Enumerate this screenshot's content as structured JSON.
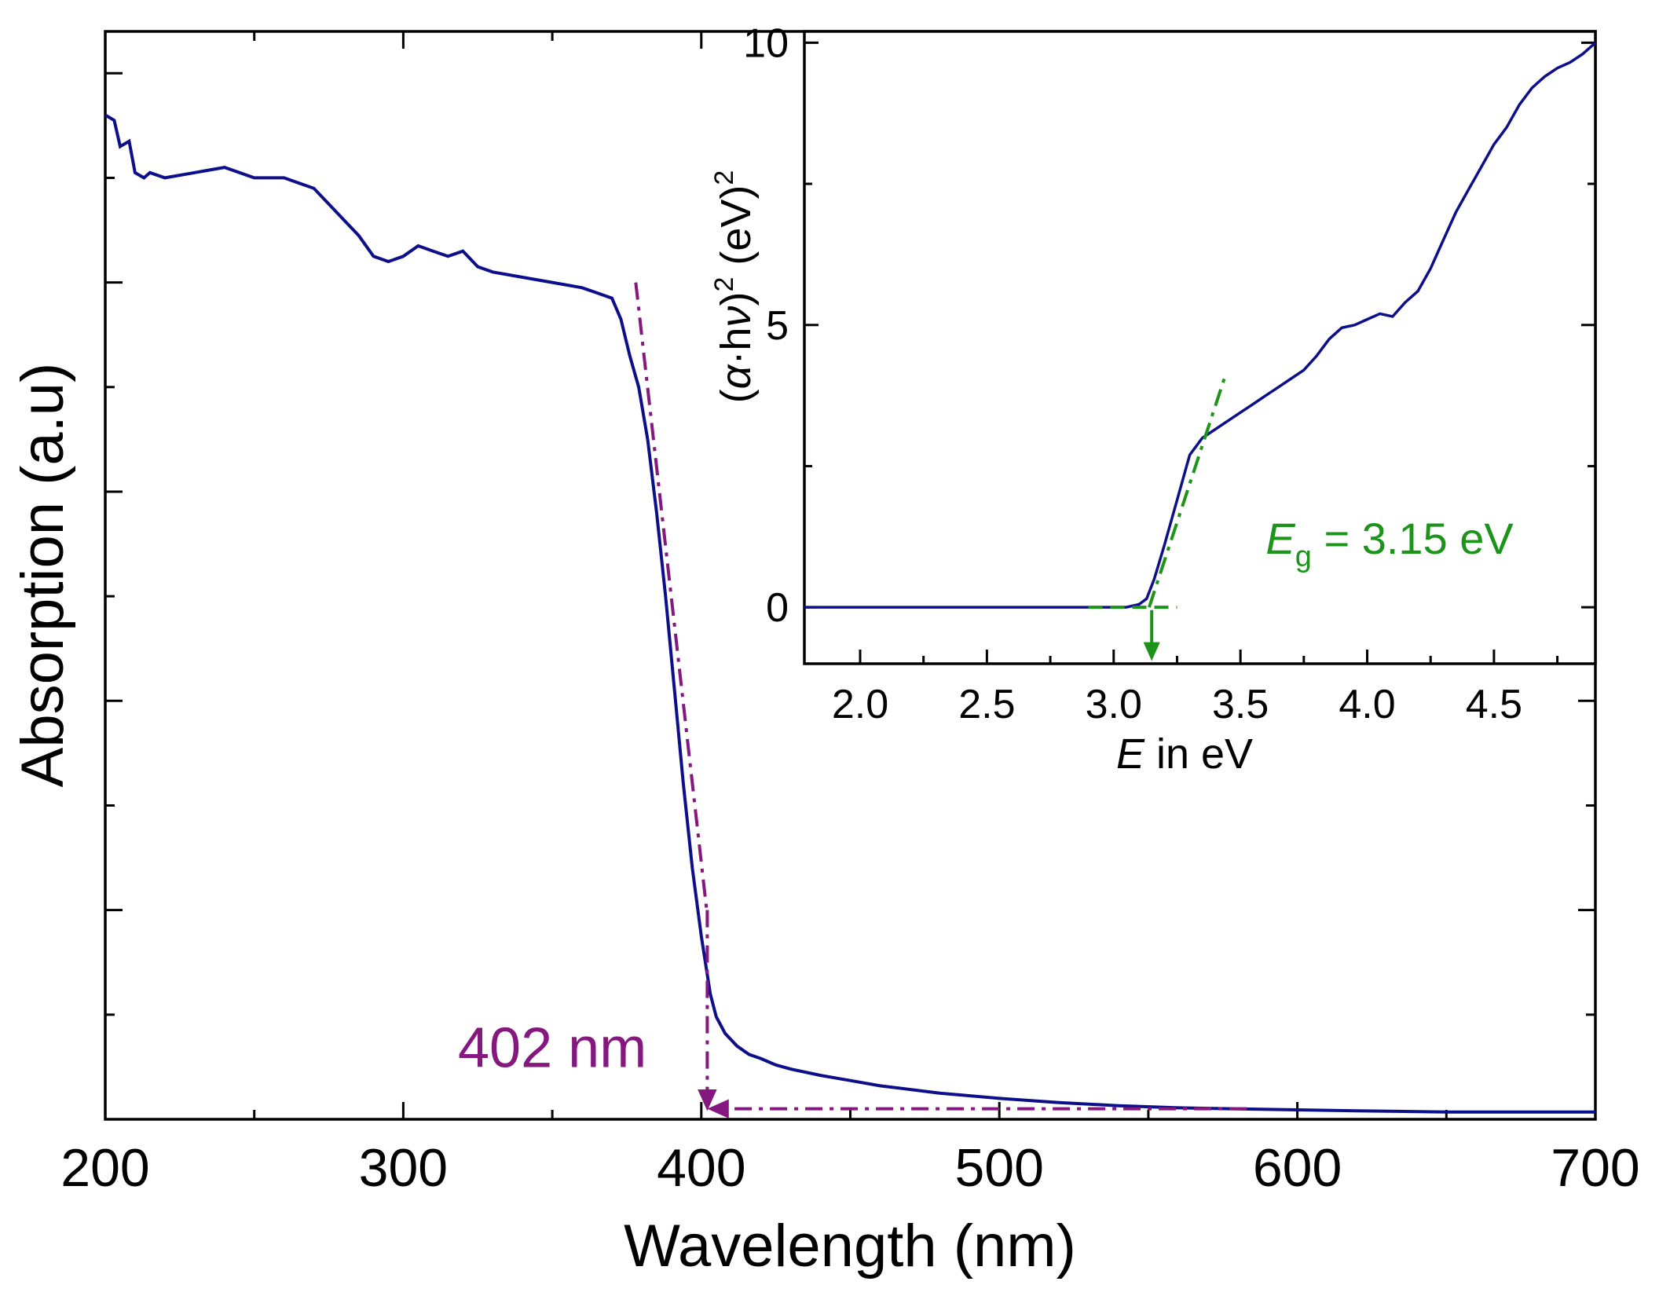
{
  "chart_data": [
    {
      "type": "line",
      "panel": "main",
      "xlabel": "Wavelength (nm)",
      "ylabel": "Absorption (a.u)",
      "xlim": [
        200,
        700
      ],
      "ylim": [
        0,
        10.4
      ],
      "y_tick_labels_shown": false,
      "x_ticks": [
        200,
        300,
        400,
        500,
        600,
        700
      ],
      "x_tick_labels": [
        "200",
        "300",
        "400",
        "500",
        "600",
        "700"
      ],
      "series": [
        {
          "color": "#0d0f8a",
          "x": [
            200,
            203,
            205,
            208,
            210,
            213,
            215,
            220,
            230,
            240,
            250,
            260,
            270,
            280,
            285,
            290,
            295,
            300,
            305,
            310,
            315,
            320,
            325,
            330,
            340,
            350,
            360,
            365,
            370,
            373,
            376,
            379,
            382,
            385,
            388,
            391,
            394,
            397,
            400,
            403,
            405,
            408,
            412,
            416,
            420,
            425,
            430,
            440,
            450,
            460,
            480,
            500,
            520,
            540,
            560,
            580,
            600,
            620,
            650,
            680,
            700
          ],
          "y": [
            9.6,
            9.55,
            9.3,
            9.35,
            9.05,
            9.0,
            9.05,
            9.0,
            9.05,
            9.1,
            9.0,
            9.0,
            8.9,
            8.6,
            8.45,
            8.25,
            8.2,
            8.25,
            8.35,
            8.3,
            8.25,
            8.3,
            8.15,
            8.1,
            8.05,
            8.0,
            7.95,
            7.9,
            7.85,
            7.65,
            7.3,
            7.0,
            6.5,
            5.8,
            5.0,
            4.1,
            3.2,
            2.4,
            1.75,
            1.2,
            0.98,
            0.82,
            0.7,
            0.62,
            0.58,
            0.52,
            0.48,
            0.42,
            0.37,
            0.32,
            0.25,
            0.2,
            0.16,
            0.13,
            0.11,
            0.1,
            0.09,
            0.08,
            0.07,
            0.07,
            0.07
          ]
        }
      ],
      "annotations": [
        {
          "type": "tangent-line",
          "color": "#84187f",
          "style": "dash-dot",
          "points": [
            [
              378,
              8.0
            ],
            [
              402,
              1.95
            ]
          ]
        },
        {
          "type": "arrow",
          "color": "#84187f",
          "style": "dash-dot",
          "from": [
            402,
            2.0
          ],
          "to": [
            402,
            0.08
          ]
        },
        {
          "type": "arrow",
          "color": "#84187f",
          "style": "dash-dot",
          "from": [
            583,
            0.1
          ],
          "to": [
            402,
            0.1
          ]
        },
        {
          "type": "label",
          "text": "402 nm",
          "color": "#84187f",
          "x": 350,
          "y": 0.5
        }
      ]
    },
    {
      "type": "line",
      "panel": "inset",
      "xlabel_italic": "E",
      "xlabel_rest": " in eV",
      "ylabel": "(α·hν)² (eV)²",
      "ylabel_parts": {
        "open": "(",
        "alpha": "α",
        "dot": "·",
        "h": "h",
        "nu": "ν",
        "close": ")",
        "sq1": "2",
        "units": " (eV)",
        "sq2": "2"
      },
      "xlim": [
        1.78,
        4.9
      ],
      "ylim": [
        -1,
        10.2
      ],
      "x_ticks": [
        2.0,
        2.5,
        3.0,
        3.5,
        4.0,
        4.5
      ],
      "x_tick_labels": [
        "2.0",
        "2.5",
        "3.0",
        "3.5",
        "4.0",
        "4.5"
      ],
      "y_ticks": [
        0,
        5,
        10
      ],
      "y_tick_labels": [
        "0",
        "5",
        "10"
      ],
      "series": [
        {
          "color": "#0d0f8a",
          "x": [
            1.78,
            2.0,
            2.5,
            2.9,
            3.05,
            3.1,
            3.13,
            3.16,
            3.2,
            3.25,
            3.3,
            3.35,
            3.4,
            3.45,
            3.5,
            3.55,
            3.6,
            3.65,
            3.7,
            3.75,
            3.8,
            3.85,
            3.9,
            3.95,
            4.0,
            4.05,
            4.1,
            4.15,
            4.2,
            4.25,
            4.3,
            4.35,
            4.4,
            4.45,
            4.5,
            4.55,
            4.6,
            4.65,
            4.7,
            4.75,
            4.8,
            4.85,
            4.9
          ],
          "y": [
            0,
            0,
            0,
            0,
            0.0,
            0.05,
            0.15,
            0.5,
            1.1,
            1.9,
            2.7,
            3.0,
            3.15,
            3.3,
            3.45,
            3.6,
            3.75,
            3.9,
            4.05,
            4.2,
            4.45,
            4.75,
            4.95,
            5.0,
            5.1,
            5.2,
            5.15,
            5.4,
            5.6,
            6.0,
            6.5,
            7.0,
            7.4,
            7.8,
            8.2,
            8.5,
            8.9,
            9.2,
            9.4,
            9.55,
            9.65,
            9.8,
            10.0
          ]
        }
      ],
      "annotations": [
        {
          "type": "baseline-line",
          "color": "#1c9419",
          "style": "dashed",
          "points": [
            [
              2.9,
              0
            ],
            [
              3.25,
              0
            ]
          ]
        },
        {
          "type": "tangent-line",
          "color": "#1c9419",
          "style": "dash-dot",
          "points": [
            [
              3.14,
              0
            ],
            [
              3.44,
              4.1
            ]
          ]
        },
        {
          "type": "arrow",
          "color": "#1c9419",
          "style": "solid",
          "from": [
            3.15,
            -0.05
          ],
          "to": [
            3.15,
            -0.95
          ]
        },
        {
          "type": "label",
          "color": "#1c9419",
          "italic_part": "E",
          "subscript": "g",
          "rest": " = 3.15 eV",
          "x": 3.6,
          "y": 0.95
        }
      ]
    }
  ]
}
